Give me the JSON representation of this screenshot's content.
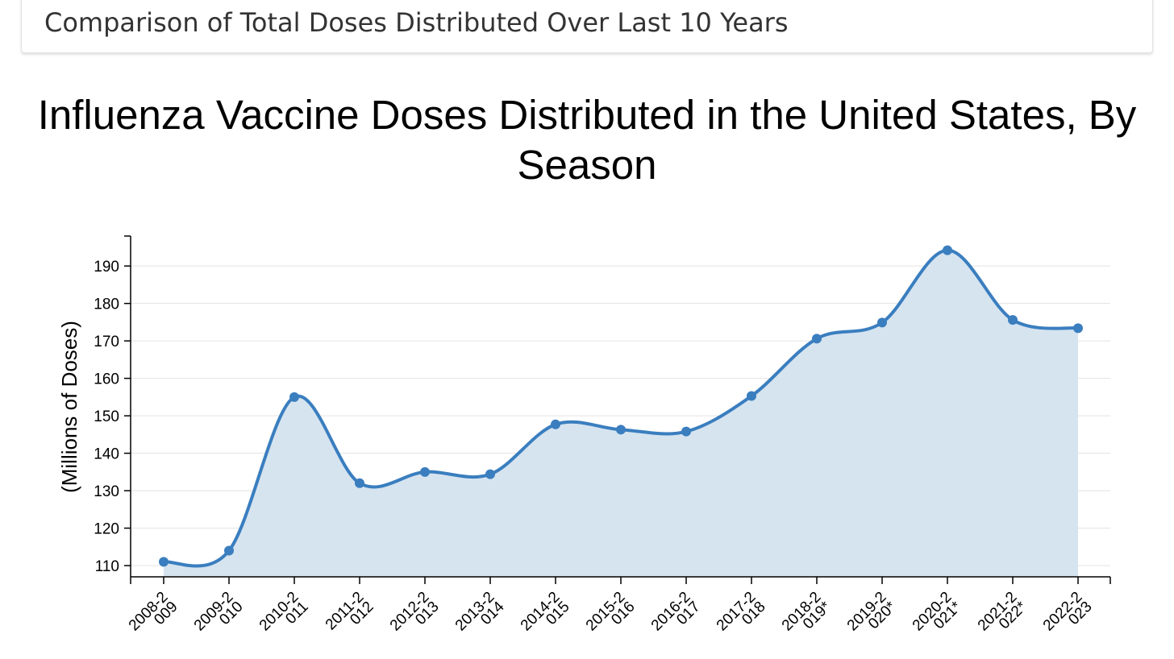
{
  "header": {
    "title": "Comparison of Total Doses Distributed Over Last 10 Years"
  },
  "chart_data": {
    "type": "area",
    "title": "Influenza Vaccine Doses Distributed in the United States, By Season",
    "y_label": "(Millions of Doses)",
    "categories": [
      "2008-2009",
      "2009-2010",
      "2010-2011",
      "2011-2012",
      "2012-2013",
      "2013-2014",
      "2014-2015",
      "2015-2016",
      "2016-2017",
      "2017-2018",
      "2018-2019*",
      "2019-2020*",
      "2020-2021*",
      "2021-2022*",
      "2022-2023"
    ],
    "values": [
      111,
      114,
      155,
      132,
      135,
      134.4,
      147.7,
      146.3,
      145.8,
      155.3,
      170.6,
      174.9,
      194.2,
      175.6,
      173.4
    ],
    "color": "#3a7ebf",
    "fill_color": "#d6e4f0",
    "ylim": [
      107,
      198
    ],
    "yticks": [
      110,
      120,
      130,
      140,
      150,
      160,
      170,
      180,
      190
    ],
    "grid": true
  }
}
